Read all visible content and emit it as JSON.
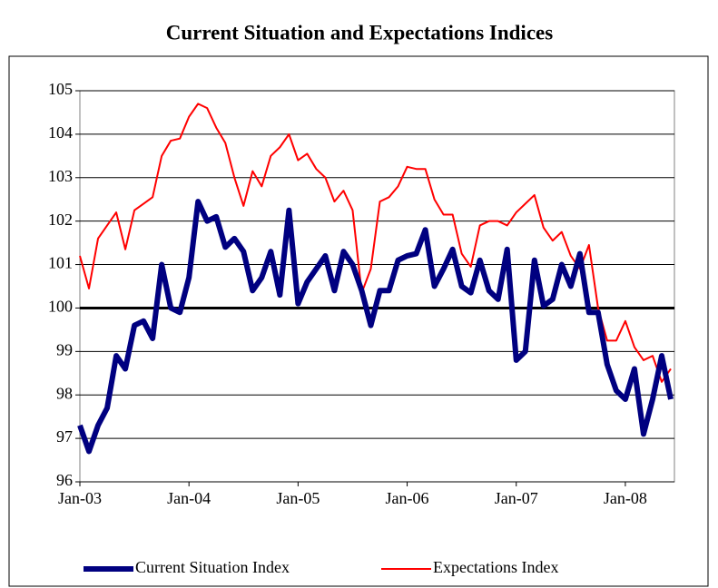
{
  "chart_data": {
    "type": "line",
    "title": "Current Situation and Expectations Indices",
    "categories": [
      "Jan-03",
      null,
      null,
      null,
      null,
      null,
      null,
      null,
      null,
      null,
      null,
      null,
      "Jan-04",
      null,
      null,
      null,
      null,
      null,
      null,
      null,
      null,
      null,
      null,
      null,
      "Jan-05",
      null,
      null,
      null,
      null,
      null,
      null,
      null,
      null,
      null,
      null,
      null,
      "Jan-06",
      null,
      null,
      null,
      null,
      null,
      null,
      null,
      null,
      null,
      null,
      null,
      "Jan-07",
      null,
      null,
      null,
      null,
      null,
      null,
      null,
      null,
      null,
      null,
      null,
      "Jan-08",
      null,
      null,
      null,
      null,
      null
    ],
    "series": [
      {
        "name": "Current Situation Index",
        "color": "#000080",
        "width": 6,
        "values": [
          97.3,
          96.7,
          97.3,
          97.7,
          98.9,
          98.6,
          99.6,
          99.7,
          99.3,
          101.0,
          100.0,
          99.9,
          100.7,
          102.45,
          102.0,
          102.1,
          101.4,
          101.6,
          101.3,
          100.4,
          100.7,
          101.3,
          100.3,
          102.25,
          100.1,
          100.6,
          100.9,
          101.2,
          100.4,
          101.3,
          101.0,
          100.4,
          99.6,
          100.4,
          100.4,
          101.1,
          101.2,
          101.25,
          101.8,
          100.5,
          100.9,
          101.35,
          100.5,
          100.35,
          101.1,
          100.4,
          100.2,
          101.35,
          98.8,
          99.0,
          101.1,
          100.05,
          100.2,
          101.0,
          100.5,
          101.25,
          99.9,
          99.9,
          98.7,
          98.1,
          97.9,
          98.6,
          97.1,
          97.9,
          98.9,
          97.9
        ]
      },
      {
        "name": "Expectations Index",
        "color": "#ff0000",
        "width": 2,
        "values": [
          101.2,
          100.45,
          101.6,
          101.9,
          102.2,
          101.35,
          102.25,
          102.4,
          102.55,
          103.5,
          103.85,
          103.9,
          104.4,
          104.7,
          104.6,
          104.15,
          103.8,
          103.0,
          102.35,
          103.15,
          102.8,
          103.5,
          103.7,
          104.0,
          103.4,
          103.55,
          103.2,
          103.0,
          102.45,
          102.7,
          102.25,
          100.35,
          100.9,
          102.45,
          102.55,
          102.8,
          103.25,
          103.2,
          103.2,
          102.5,
          102.15,
          102.15,
          101.25,
          100.95,
          101.9,
          102.0,
          102.0,
          101.9,
          102.2,
          102.4,
          102.6,
          101.85,
          101.55,
          101.75,
          101.2,
          100.9,
          101.45,
          100.0,
          99.25,
          99.25,
          99.7,
          99.1,
          98.8,
          98.9,
          98.3,
          98.6
        ]
      }
    ],
    "ylim": [
      96,
      105
    ],
    "yticks": [
      96,
      97,
      98,
      99,
      100,
      101,
      102,
      103,
      104,
      105
    ],
    "hline": 100,
    "grid": true,
    "legend": "bottom"
  }
}
